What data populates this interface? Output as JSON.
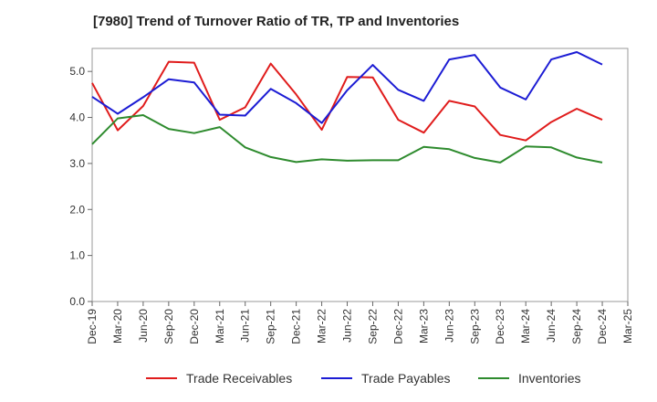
{
  "chart_data": {
    "type": "line",
    "title": "[7980]  Trend of Turnover Ratio of TR, TP and Inventories",
    "xlabel": "",
    "ylabel": "",
    "ylim": [
      0,
      5.5
    ],
    "yticks": [
      "0.0",
      "1.0",
      "2.0",
      "3.0",
      "4.0",
      "5.0"
    ],
    "x_tick_labels": [
      "Dec-19",
      "Mar-20",
      "Jun-20",
      "Sep-20",
      "Dec-20",
      "Mar-21",
      "Jun-21",
      "Sep-21",
      "Dec-21",
      "Mar-22",
      "Jun-22",
      "Sep-22",
      "Dec-22",
      "Mar-23",
      "Jun-23",
      "Sep-23",
      "Dec-23",
      "Mar-24",
      "Jun-24",
      "Sep-24",
      "Dec-24",
      "Mar-25"
    ],
    "x": [
      "Dec-19",
      "Mar-20",
      "Jun-20",
      "Sep-20",
      "Dec-20",
      "Mar-21",
      "Jun-21",
      "Sep-21",
      "Dec-21",
      "Mar-22",
      "Jun-22",
      "Sep-22",
      "Dec-22",
      "Mar-23",
      "Jun-23",
      "Sep-23",
      "Dec-23",
      "Mar-24",
      "Jun-24",
      "Sep-24",
      "Dec-24"
    ],
    "grid": true,
    "legend_position": "bottom",
    "series": [
      {
        "name": "Trade Receivables",
        "color": "#e01c1c",
        "values": [
          4.75,
          3.72,
          4.25,
          5.21,
          5.19,
          3.95,
          4.22,
          5.17,
          4.5,
          3.73,
          4.88,
          4.87,
          3.95,
          3.67,
          4.36,
          4.24,
          3.62,
          3.5,
          3.9,
          4.19,
          3.95
        ]
      },
      {
        "name": "Trade Payables",
        "color": "#1c1cd4",
        "values": [
          4.45,
          4.08,
          4.44,
          4.83,
          4.76,
          4.06,
          4.04,
          4.62,
          4.31,
          3.88,
          4.59,
          5.14,
          4.6,
          4.36,
          5.26,
          5.36,
          4.65,
          4.39,
          5.26,
          5.42,
          5.15
        ]
      },
      {
        "name": "Inventories",
        "color": "#2e8b2e",
        "values": [
          3.42,
          3.98,
          4.05,
          3.75,
          3.66,
          3.79,
          3.35,
          3.14,
          3.03,
          3.09,
          3.06,
          3.07,
          3.07,
          3.36,
          3.31,
          3.12,
          3.02,
          3.37,
          3.35,
          3.13,
          3.02
        ]
      }
    ]
  }
}
